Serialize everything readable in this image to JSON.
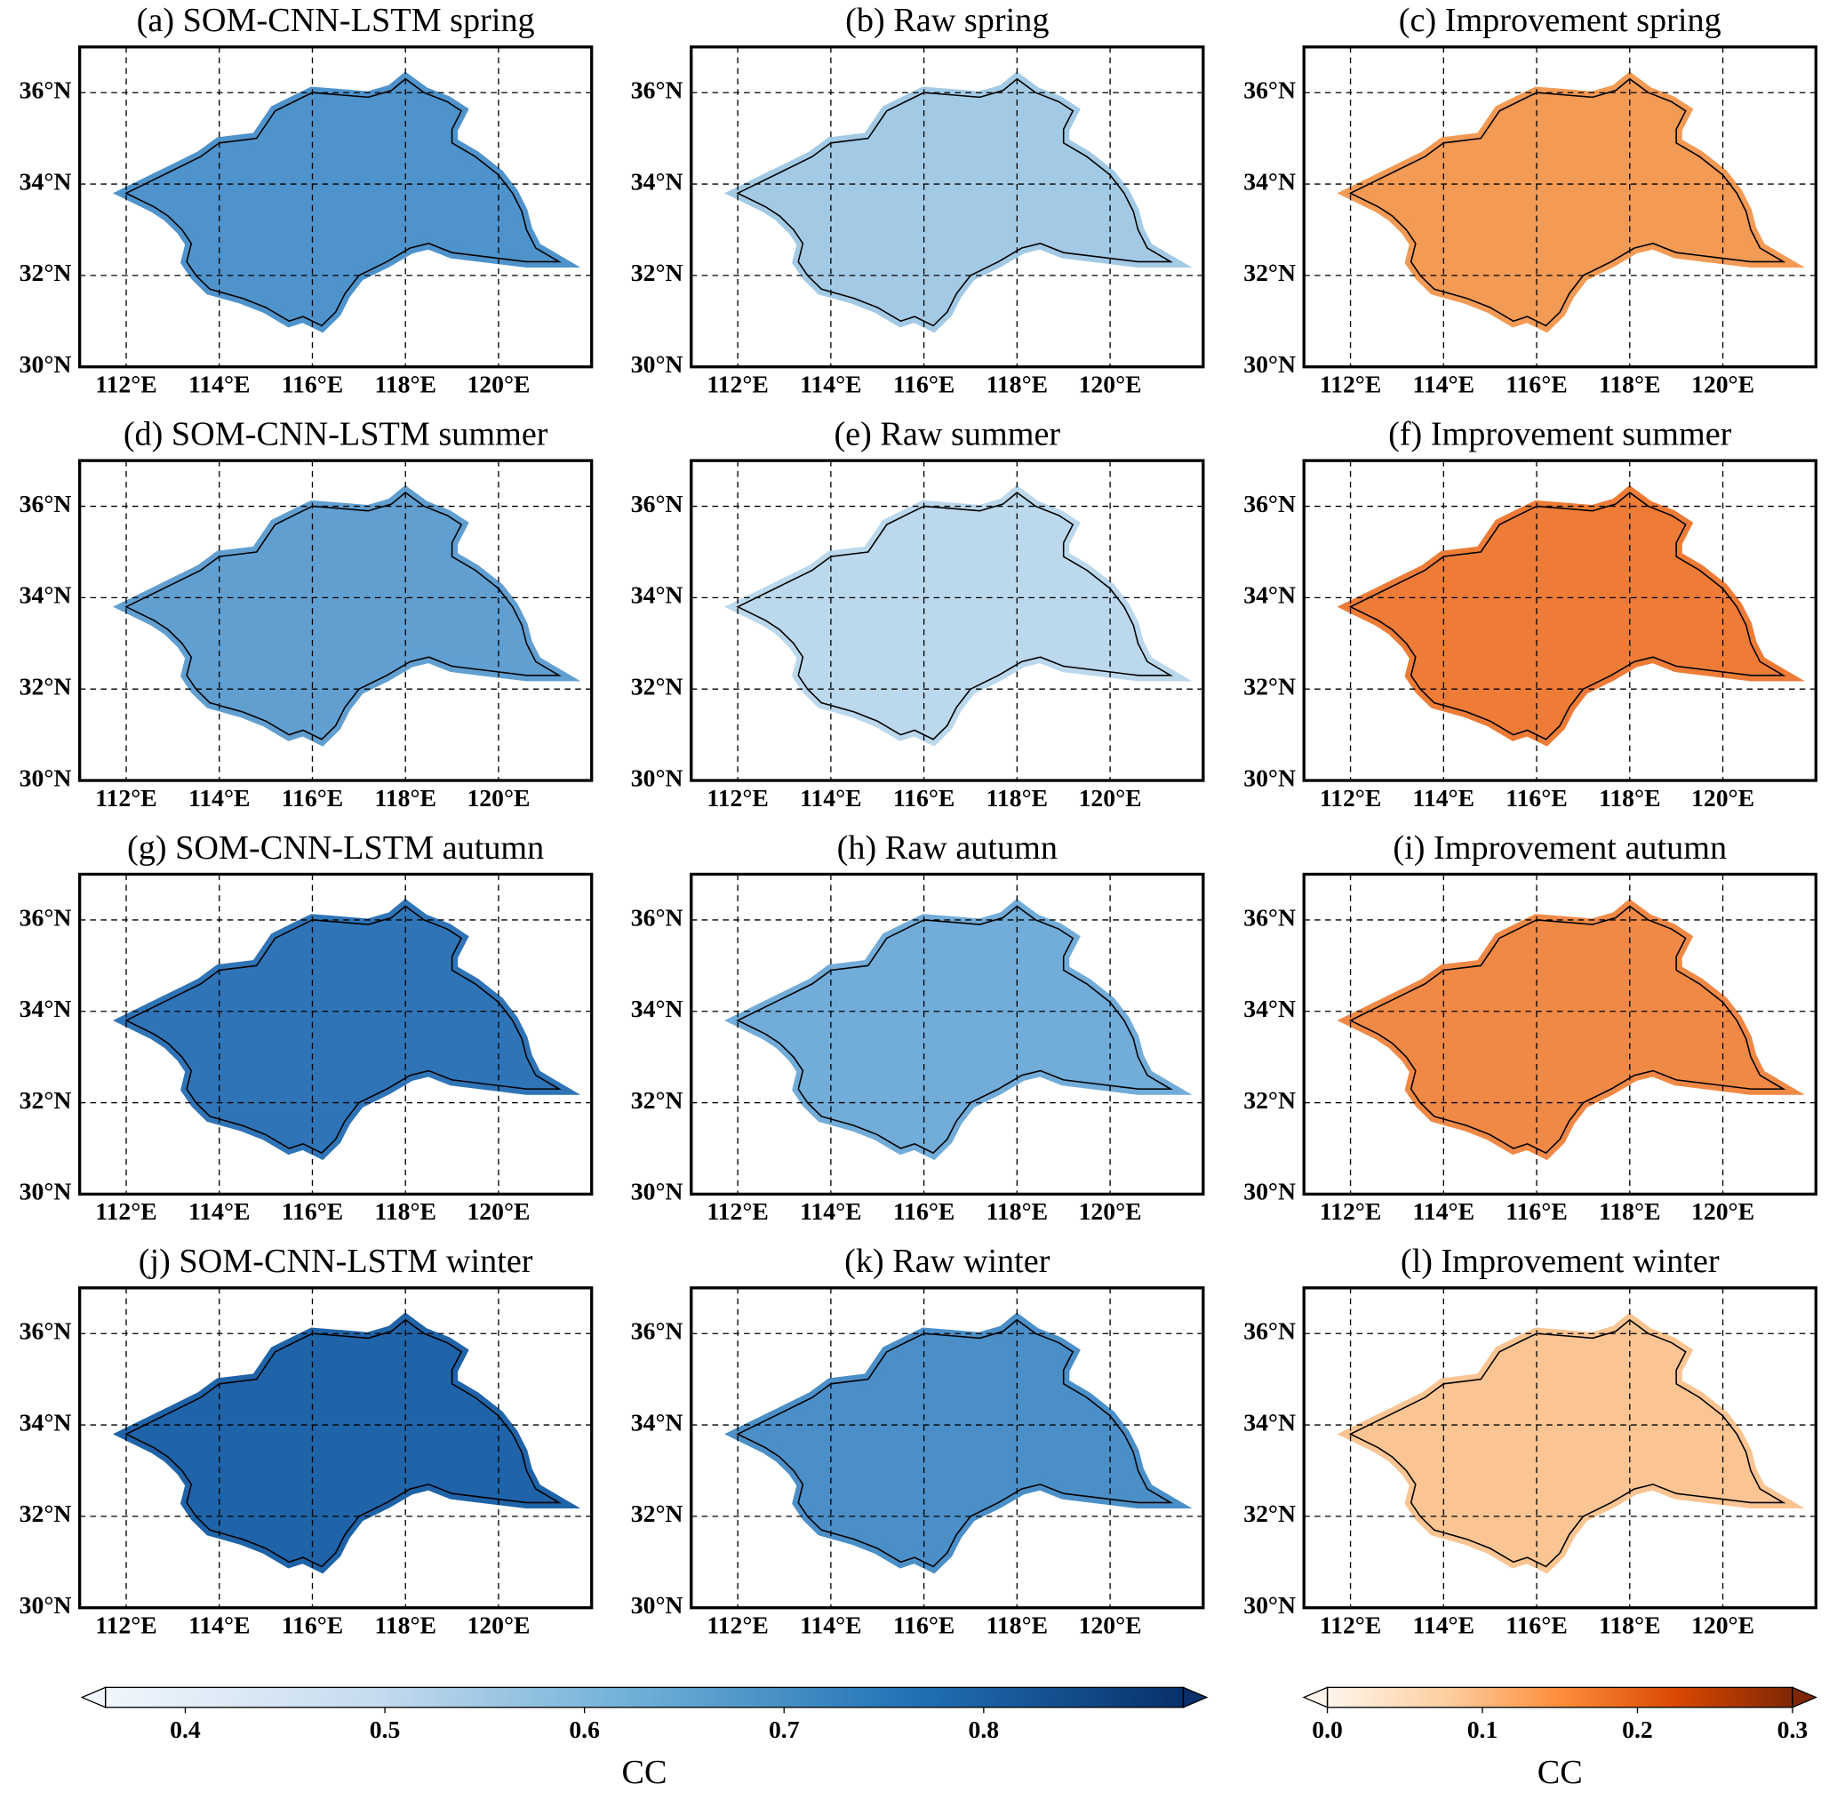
{
  "figure": {
    "xlim": [
      111,
      122
    ],
    "ylim": [
      30,
      37
    ],
    "grid": true,
    "xticks": [
      {
        "value": 112,
        "label": "112°E"
      },
      {
        "value": 114,
        "label": "114°E"
      },
      {
        "value": 116,
        "label": "116°E"
      },
      {
        "value": 118,
        "label": "118°E"
      },
      {
        "value": 120,
        "label": "120°E"
      }
    ],
    "yticks": [
      {
        "value": 30,
        "label": "30°N"
      },
      {
        "value": 32,
        "label": "32°N"
      },
      {
        "value": 34,
        "label": "34°N"
      },
      {
        "value": 36,
        "label": "36°N"
      }
    ],
    "panels": [
      {
        "title": "(a) SOM-CNN-LSTM spring",
        "color": "#4f93cc",
        "colorbar": 0
      },
      {
        "title": "(b) Raw spring",
        "color": "#a3cae5",
        "colorbar": 0
      },
      {
        "title": "(c) Improvement spring",
        "color": "#f39a55",
        "colorbar": 1
      },
      {
        "title": "(d) SOM-CNN-LSTM summer",
        "color": "#619fd1",
        "colorbar": 0
      },
      {
        "title": "(e) Raw summer",
        "color": "#bcd8ec",
        "colorbar": 0
      },
      {
        "title": "(f) Improvement summer",
        "color": "#ee7c37",
        "colorbar": 1
      },
      {
        "title": "(g) SOM-CNN-LSTM autumn",
        "color": "#2f74b7",
        "colorbar": 0
      },
      {
        "title": "(h) Raw autumn",
        "color": "#72acd9",
        "colorbar": 0
      },
      {
        "title": "(i) Improvement autumn",
        "color": "#f08946",
        "colorbar": 1
      },
      {
        "title": "(j) SOM-CNN-LSTM winter",
        "color": "#1f63a8",
        "colorbar": 0
      },
      {
        "title": "(k) Raw winter",
        "color": "#4b8fc8",
        "colorbar": 0
      },
      {
        "title": "(l) Improvement winter",
        "color": "#fbc593",
        "colorbar": 1
      }
    ],
    "colorbars": [
      {
        "label": "CC",
        "lim": [
          0.36,
          0.9
        ],
        "ticks": [
          0.4,
          0.5,
          0.6,
          0.7,
          0.8
        ],
        "colors": [
          "#f0f6fc",
          "#c6dbef",
          "#6baed6",
          "#2171b5",
          "#08306b"
        ]
      },
      {
        "label": "CC",
        "lim": [
          0,
          0.3
        ],
        "ticks": [
          {
            "value": 0,
            "label": "0.0"
          },
          0.1,
          0.2,
          0.3
        ],
        "colors": [
          "#fff5eb",
          "#fdd0a2",
          "#fd8d3c",
          "#d94801",
          "#7f2704"
        ]
      }
    ]
  }
}
